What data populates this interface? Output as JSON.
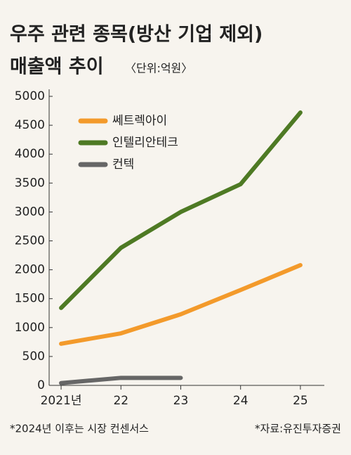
{
  "chart_data": {
    "type": "line",
    "title": [
      "우주 관련 종목(방산 기업 제외)",
      "매출액 추이"
    ],
    "unit": "〈단위:억원〉",
    "x": [
      2021,
      2022,
      2023,
      2024,
      2025
    ],
    "series": [
      {
        "name": "쎄트렉아이",
        "color": "#f39a2b",
        "values": [
          720,
          900,
          1230,
          1650,
          2080
        ]
      },
      {
        "name": "인텔리안테크",
        "color": "#4e7a24",
        "values": [
          1340,
          2380,
          3000,
          3480,
          4720
        ]
      },
      {
        "name": "컨텍",
        "color": "#666666",
        "values": [
          40,
          130,
          130,
          null,
          null
        ]
      }
    ],
    "xlim": [
      2020.8,
      2025.4
    ],
    "xticks": [
      {
        "value": 2021,
        "label": "2021년"
      },
      {
        "value": 2022,
        "label": "22"
      },
      {
        "value": 2023,
        "label": "23"
      },
      {
        "value": 2024,
        "label": "24"
      },
      {
        "value": 2025,
        "label": "25"
      }
    ],
    "ylim": [
      0,
      5000
    ],
    "yticks": [
      0,
      500,
      1000,
      1500,
      2000,
      2500,
      3000,
      3500,
      4000,
      4500,
      5000
    ],
    "grid": false,
    "legend": "upper-left",
    "notes": [
      "*2024년 이후는 시장 컨센서스",
      "*자료:유진투자증권"
    ]
  }
}
